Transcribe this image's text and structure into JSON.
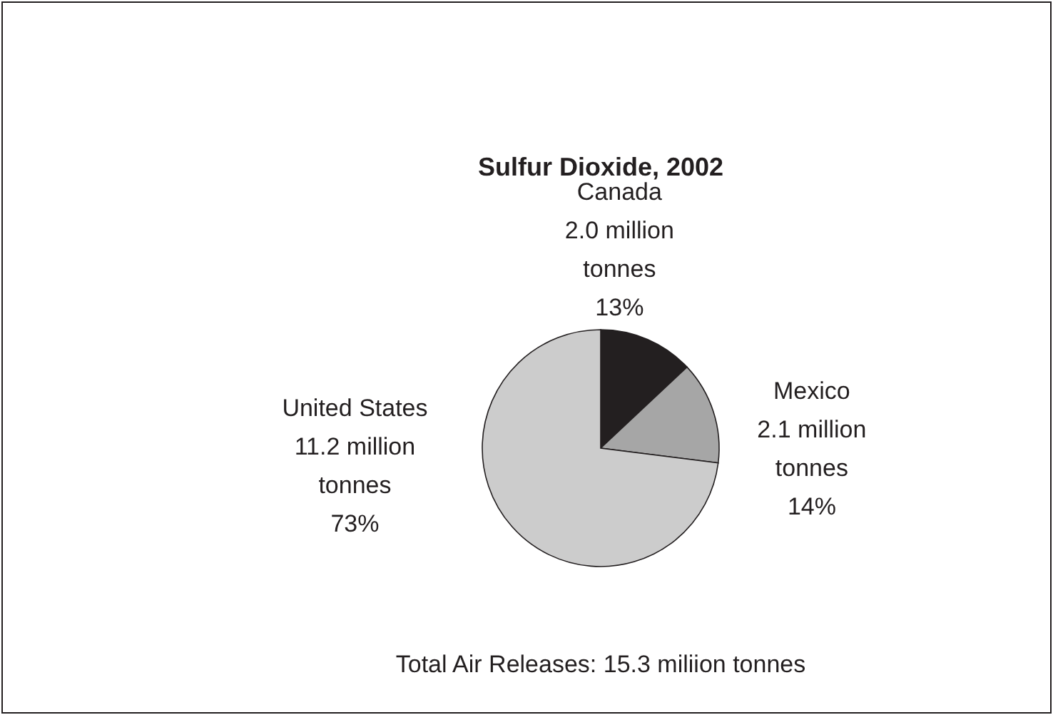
{
  "chart_data": {
    "type": "pie",
    "title": "Sulfur Dioxide, 2002",
    "categories": [
      "Canada",
      "Mexico",
      "United States"
    ],
    "values": [
      13,
      14,
      73
    ],
    "value_labels": [
      "2.0 million tonnes 13%",
      "2.1 million tonnes 14%",
      "11.2 million tonnes 73%"
    ],
    "colors": [
      "#231f20",
      "#a6a6a6",
      "#cccccc"
    ],
    "annotations": [
      "Total Air Releases: 15.3 miliion tonnes"
    ]
  }
}
